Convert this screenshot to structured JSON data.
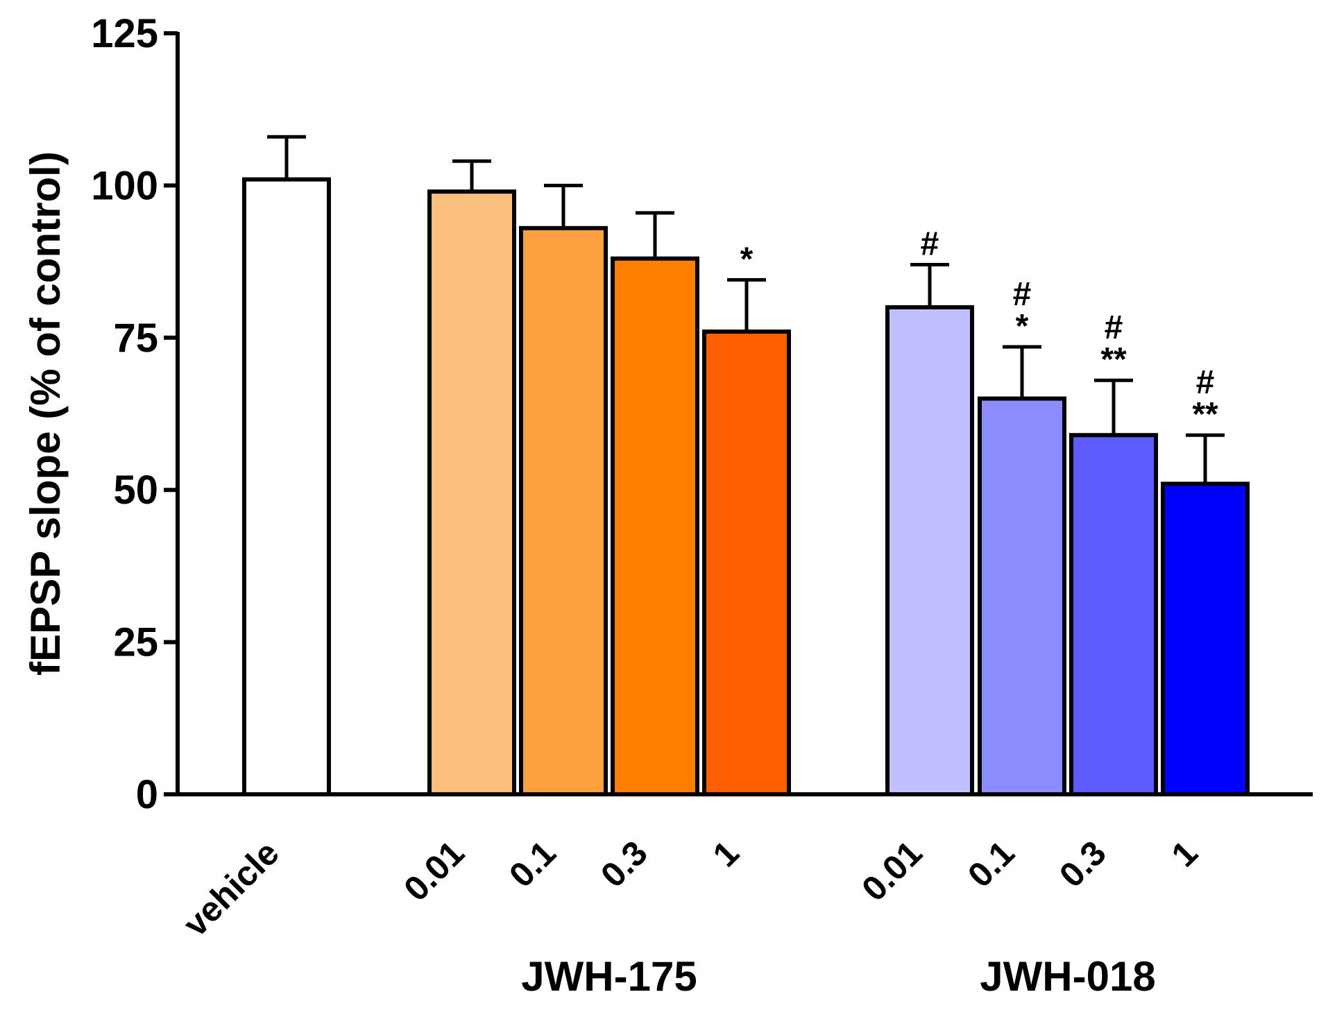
{
  "chart_data": {
    "type": "bar",
    "title": "",
    "xlabel": "",
    "ylabel": "fEPSP slope (% of control)",
    "ylim": [
      0,
      125
    ],
    "yticks": [
      0,
      25,
      50,
      75,
      100,
      125
    ],
    "grid": false,
    "legend": "none",
    "groups": [
      {
        "name": "",
        "label": ""
      },
      {
        "name": "JWH-175",
        "label": "JWH-175"
      },
      {
        "name": "JWH-018",
        "label": "JWH-018"
      }
    ],
    "bars": [
      {
        "group": 0,
        "category": "vehicle",
        "value": 101,
        "error": 7,
        "color": "#FFFFFF",
        "annotations": []
      },
      {
        "group": 1,
        "category": "0.01",
        "value": 99,
        "error": 5,
        "color": "#FDBF80",
        "annotations": []
      },
      {
        "group": 1,
        "category": "0.1",
        "value": 93,
        "error": 7,
        "color": "#FCA040",
        "annotations": []
      },
      {
        "group": 1,
        "category": "0.3",
        "value": 88,
        "error": 7.5,
        "color": "#FF8000",
        "annotations": []
      },
      {
        "group": 1,
        "category": "1",
        "value": 76,
        "error": 8.5,
        "color": "#FF6100",
        "annotations": [
          "*"
        ]
      },
      {
        "group": 2,
        "category": "0.01",
        "value": 80,
        "error": 7,
        "color": "#C0C0FF",
        "annotations": [
          "#"
        ]
      },
      {
        "group": 2,
        "category": "0.1",
        "value": 65,
        "error": 8.5,
        "color": "#8C8CFF",
        "annotations": [
          "#",
          "*"
        ]
      },
      {
        "group": 2,
        "category": "0.3",
        "value": 59,
        "error": 9,
        "color": "#5C5CFF",
        "annotations": [
          "#",
          "**"
        ]
      },
      {
        "group": 2,
        "category": "1",
        "value": 51,
        "error": 8,
        "color": "#0000FF",
        "annotations": [
          "#",
          "**"
        ]
      }
    ]
  }
}
